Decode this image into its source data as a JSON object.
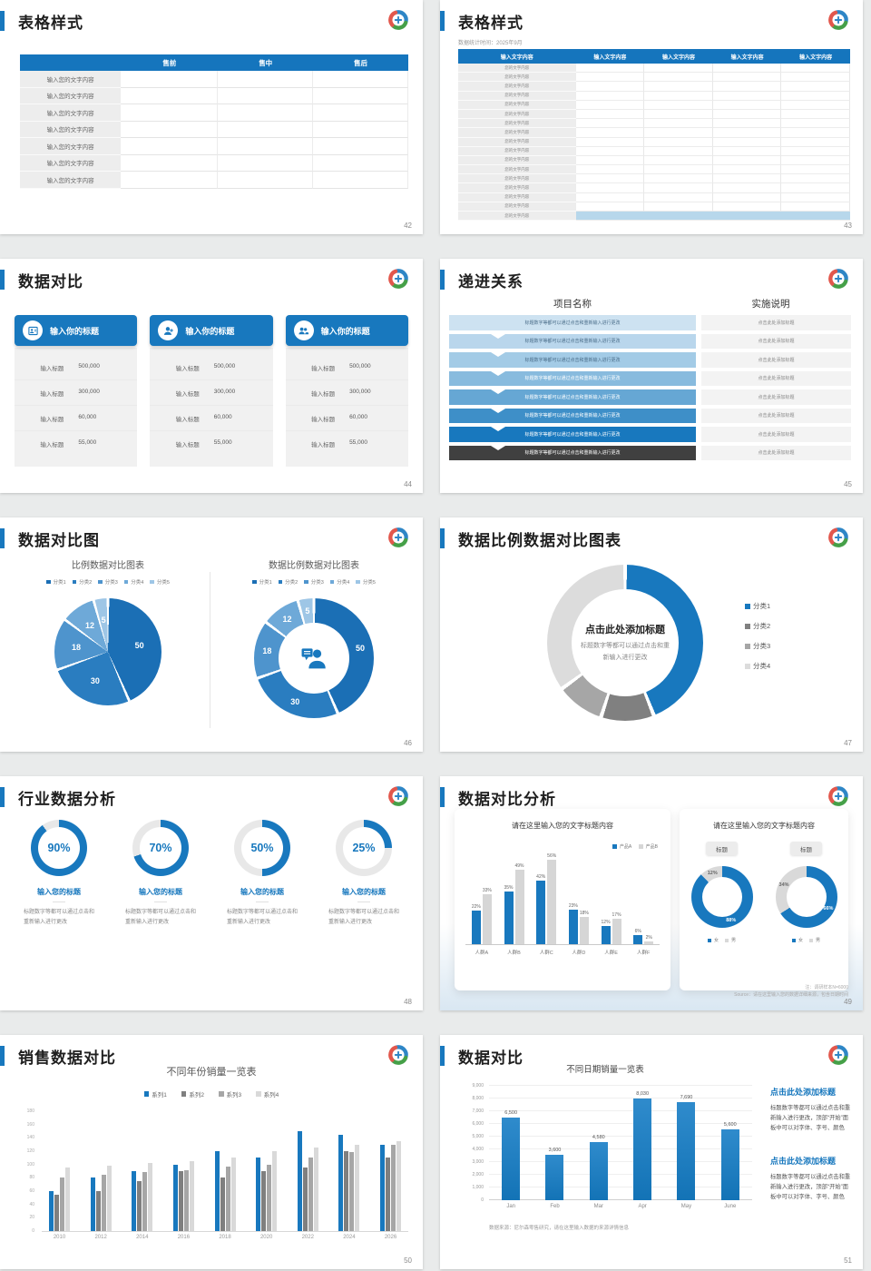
{
  "brand": {
    "accent_blue": "#1878be",
    "header_blue": "#1575bd",
    "progress_colors": [
      "#cde2f1",
      "#b9d6ec",
      "#a3cbe6",
      "#88bbde",
      "#66a7d4",
      "#3e8fc8",
      "#1878be",
      "#404040"
    ],
    "gray_series": [
      "#7f7f7f",
      "#a6a6a6",
      "#d9d9d9"
    ]
  },
  "icons": {
    "logo": "brand-swirl-logo-icon",
    "card_icons": [
      "id-card-person-icon",
      "person-plus-icon",
      "people-icon"
    ],
    "donut_center": "person-speech-bubble-icon"
  },
  "slides": {
    "s42": {
      "title": "表格样式",
      "page": "42",
      "table": {
        "headers": [
          "",
          "售前",
          "售中",
          "售后"
        ],
        "row_label": "输入您的文字内容",
        "rows": 7
      }
    },
    "s43": {
      "title": "表格样式",
      "page": "43",
      "subtitle": "数据统计时间：2025年9月",
      "table": {
        "headers": [
          "输入文字内容",
          "输入文字内容",
          "输入文字内容",
          "输入文字内容",
          "输入文字内容"
        ],
        "row_label": "您的文字内容",
        "rows": 17
      }
    },
    "s44": {
      "title": "数据对比",
      "page": "44",
      "cards": [
        {
          "icon": "id-card-person-icon",
          "header": "输入你的标题",
          "rows": [
            {
              "label": "输入标题",
              "value": "500,000"
            },
            {
              "label": "输入标题",
              "value": "300,000"
            },
            {
              "label": "输入标题",
              "value": "60,000"
            },
            {
              "label": "输入标题",
              "value": "55,000"
            }
          ]
        },
        {
          "icon": "person-plus-icon",
          "header": "输入你的标题",
          "rows": [
            {
              "label": "输入标题",
              "value": "500,000"
            },
            {
              "label": "输入标题",
              "value": "300,000"
            },
            {
              "label": "输入标题",
              "value": "60,000"
            },
            {
              "label": "输入标题",
              "value": "55,000"
            }
          ]
        },
        {
          "icon": "people-icon",
          "header": "输入你的标题",
          "rows": [
            {
              "label": "输入标题",
              "value": "500,000"
            },
            {
              "label": "输入标题",
              "value": "300,000"
            },
            {
              "label": "输入标题",
              "value": "60,000"
            },
            {
              "label": "输入标题",
              "value": "55,000"
            }
          ]
        }
      ]
    },
    "s45": {
      "title": "递进关系",
      "page": "45",
      "columns": {
        "left": "项目名称",
        "right": "实施说明"
      },
      "bar_label": "标题数字等都可以通过点击和重新输入进行更改",
      "note_label": "点击此处添加标题",
      "steps": 8
    },
    "s46": {
      "title": "数据对比图",
      "page": "46"
    },
    "s47": {
      "title": "数据比例数据对比图表",
      "page": "47",
      "center_title": "点击此处添加标题",
      "center_body": "标题数字等都可以通过点击和重新输入进行更改"
    },
    "s48": {
      "title": "行业数据分析",
      "page": "48",
      "item_title": "输入您的标题",
      "item_body": "标题数字等都可以通过点击和重新输入进行更改"
    },
    "s49": {
      "title": "数据对比分析",
      "page": "49",
      "right_card_title": "请在这里输入您的文字标题内容",
      "badge": "标题",
      "note1": "注：调研样本N=6000",
      "note2": "Source：请在这里输入您的数据详细来源，包含日期时间"
    },
    "s50": {
      "title": "销售数据对比",
      "page": "50"
    },
    "s51": {
      "title": "数据对比",
      "page": "51",
      "source_note": "数据来源：尼尔森零售研究，请在这里输入数据的来源详情信息",
      "blocks": [
        {
          "heading": "点击此处添加标题",
          "body": "标题数字等都可以通过点击和重新输入进行更改，顶部“开始”面板中可以对字体、字号、颜色"
        },
        {
          "heading": "点击此处添加标题",
          "body": "标题数字等都可以通过点击和重新输入进行更改，顶部“开始”面板中可以对字体、字号、颜色"
        }
      ]
    }
  },
  "chart_data": [
    {
      "id": "pie46",
      "type": "pie",
      "title": "比例数据对比图表",
      "labels": [
        "分类1",
        "分类2",
        "分类3",
        "分类4",
        "分类5"
      ],
      "values": [
        50,
        30,
        18,
        12,
        5
      ],
      "colors": [
        "#1b6fb5",
        "#2a7dc0",
        "#4e94cd",
        "#6ea9d8",
        "#9ec6e6"
      ],
      "legend_position": "top"
    },
    {
      "id": "donut46",
      "type": "pie",
      "donut": true,
      "title": "数据比例数据对比图表",
      "labels": [
        "分类1",
        "分类2",
        "分类3",
        "分类4",
        "分类5"
      ],
      "values": [
        50,
        30,
        18,
        12,
        5
      ],
      "colors": [
        "#1b6fb5",
        "#2a7dc0",
        "#4e94cd",
        "#6ea9d8",
        "#9ec6e6"
      ],
      "center_icon": "person-speech-bubble-icon",
      "legend_position": "top"
    },
    {
      "id": "donut47",
      "type": "pie",
      "donut": true,
      "labels": [
        "分类1",
        "分类2",
        "分类3",
        "分类4"
      ],
      "values": [
        44,
        11,
        10,
        35
      ],
      "colors": [
        "#1878be",
        "#808080",
        "#a6a6a6",
        "#dcdcdc"
      ],
      "legend_position": "right"
    },
    {
      "id": "rings48",
      "type": "pie",
      "subtype": "progress-rings",
      "values": [
        90,
        70,
        50,
        25
      ],
      "labels": [
        "90%",
        "70%",
        "50%",
        "25%"
      ],
      "color": "#1878be",
      "track": "#e8e8e8"
    },
    {
      "id": "bar49",
      "type": "bar",
      "title": "请在这里输入您的文字标题内容",
      "categories": [
        "人群A",
        "人群B",
        "人群C",
        "人群D",
        "人群E",
        "人群F"
      ],
      "series": [
        {
          "name": "产品A",
          "color": "#1878be",
          "values": [
            22,
            35,
            42,
            23,
            12,
            6
          ]
        },
        {
          "name": "产品B",
          "color": "#d6d6d6",
          "values": [
            33,
            49,
            56,
            18,
            17,
            2
          ]
        }
      ],
      "value_suffix": "%",
      "ylim": [
        0,
        60
      ],
      "legend_position": "top-right"
    },
    {
      "id": "donut49a",
      "type": "pie",
      "donut": true,
      "legend": [
        "女",
        "男"
      ],
      "values": [
        88,
        12
      ],
      "value_labels": [
        "88%",
        "12%"
      ],
      "label_colors": [
        "#ffffff",
        "#666666"
      ],
      "colors": [
        "#1878be",
        "#d9d9d9"
      ]
    },
    {
      "id": "donut49b",
      "type": "pie",
      "donut": true,
      "legend": [
        "女",
        "男"
      ],
      "values": [
        66,
        34
      ],
      "value_labels": [
        "66%",
        "34%"
      ],
      "label_colors": [
        "#ffffff",
        "#666666"
      ],
      "colors": [
        "#1878be",
        "#d9d9d9"
      ]
    },
    {
      "id": "bar50",
      "type": "bar",
      "title": "不同年份销量一览表",
      "categories": [
        "2010",
        "2012",
        "2014",
        "2016",
        "2018",
        "2020",
        "2022",
        "2024",
        "2026"
      ],
      "series": [
        {
          "name": "系列1",
          "color": "#1878be",
          "values": [
            60,
            80,
            90,
            100,
            120,
            110,
            150,
            145,
            130
          ]
        },
        {
          "name": "系列2",
          "color": "#7f7f7f",
          "values": [
            55,
            60,
            75,
            90,
            80,
            90,
            95,
            120,
            110
          ]
        },
        {
          "name": "系列3",
          "color": "#a6a6a6",
          "values": [
            80,
            85,
            88,
            92,
            97,
            100,
            110,
            119,
            130
          ]
        },
        {
          "name": "系列4",
          "color": "#d9d9d9",
          "values": [
            95,
            98,
            102,
            105,
            110,
            120,
            125,
            129,
            135
          ]
        }
      ],
      "ylim": [
        0,
        180
      ],
      "ytick_step": 20,
      "legend_position": "top"
    },
    {
      "id": "bar51",
      "type": "bar",
      "title": "不同日期销量一览表",
      "categories": [
        "Jan",
        "Feb",
        "Mar",
        "Apr",
        "May",
        "June"
      ],
      "values": [
        6500,
        3600,
        4580,
        8030,
        7690,
        5600
      ],
      "value_labels": [
        "6,500",
        "3,600",
        "4,580",
        "8,030",
        "7,690",
        "5,600"
      ],
      "color": "#1878be",
      "ylim": [
        0,
        9000
      ],
      "ytick_step": 1000,
      "grid": true
    }
  ]
}
